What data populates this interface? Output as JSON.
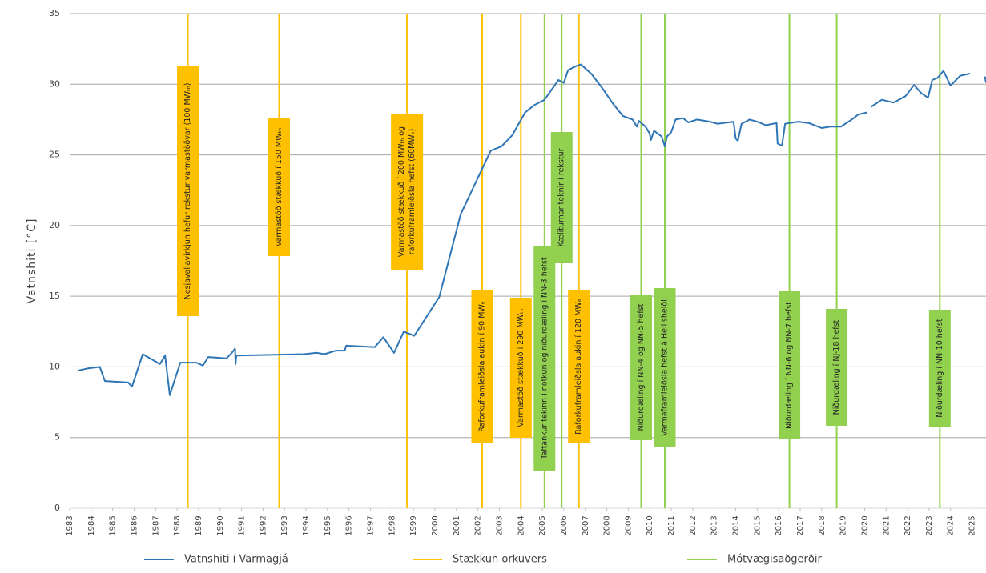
{
  "chart_data": {
    "type": "line",
    "ylabel": "Vatnshiti [°C]",
    "xlim": [
      1983,
      2025.65
    ],
    "xticks": [
      1983,
      1984,
      1985,
      1986,
      1987,
      1988,
      1989,
      1990,
      1991,
      1992,
      1993,
      1994,
      1995,
      1996,
      1997,
      1998,
      1999,
      2000,
      2001,
      2002,
      2003,
      2004,
      2005,
      2006,
      2007,
      2008,
      2009,
      2010,
      2011,
      2012,
      2013,
      2014,
      2015,
      2016,
      2017,
      2018,
      2019,
      2020,
      2021,
      2022,
      2023,
      2024,
      2025
    ],
    "ylim": [
      0,
      35
    ],
    "yticks": [
      0,
      5,
      10,
      15,
      20,
      25,
      30,
      35
    ],
    "grid": true,
    "legend": "bottom",
    "series": [
      {
        "name": "Vatnshiti í Varmagjá",
        "color": "#2e75b6",
        "x": [
          1983.4,
          1983.86,
          1984.4,
          1984.64,
          1985.72,
          1985.9,
          1986.4,
          1987.2,
          1987.44,
          1987.66,
          1988.15,
          1988.9,
          1989.2,
          1989.45,
          1990.3,
          1990.55,
          1990.7,
          1990.72,
          1990.76,
          1993.9,
          1994.5,
          1994.85,
          1995.4,
          1995.8,
          1995.87,
          1997.2,
          1997.6,
          1998.1,
          1998.55,
          1999.04,
          2000.2,
          2001.2,
          2002.07,
          2002.6,
          2003.1,
          2003.6,
          2004.2,
          2004.6,
          2005.1,
          2005.75,
          2006.0,
          2006.2,
          2006.6,
          2006.8,
          2007.3,
          2007.8,
          2008.3,
          2008.75,
          2009.2,
          2009.4,
          2009.5,
          2009.8,
          2010.0,
          2010.05,
          2010.2,
          2010.55,
          2010.7,
          2010.8,
          2011.0,
          2011.2,
          2011.55,
          2011.8,
          2012.2,
          2012.8,
          2013.15,
          2013.9,
          2014.0,
          2014.1,
          2014.27,
          2014.65,
          2015.0,
          2015.4,
          2015.9,
          2015.95,
          2016.15,
          2016.3,
          2016.9,
          2017.4,
          2018.0,
          2018.4,
          2018.9,
          2019.4,
          2019.7,
          2020.1,
          2020.2,
          2020.3,
          2020.8,
          2021.35,
          2021.9,
          2022.3,
          2022.65,
          2022.95,
          2023.15,
          2023.4,
          2023.67,
          2024.0,
          2024.45,
          2024.9,
          2025.2,
          2025.6,
          2025.65
        ],
        "values": [
          9.74,
          9.9,
          10.0,
          9.0,
          8.9,
          8.6,
          10.9,
          10.2,
          10.8,
          8.0,
          10.3,
          10.3,
          10.1,
          10.7,
          10.6,
          11.0,
          11.3,
          10.2,
          10.8,
          10.9,
          11.0,
          10.9,
          11.15,
          11.15,
          11.5,
          11.4,
          12.1,
          11.0,
          12.5,
          12.2,
          14.95,
          20.8,
          23.6,
          25.3,
          25.6,
          26.4,
          28.0,
          28.5,
          28.9,
          30.3,
          30.1,
          31.0,
          31.3,
          31.4,
          30.7,
          29.7,
          28.6,
          27.75,
          27.5,
          27.0,
          27.4,
          27.0,
          26.5,
          26.05,
          26.7,
          26.3,
          25.6,
          26.3,
          26.6,
          27.5,
          27.6,
          27.3,
          27.5,
          27.35,
          27.2,
          27.35,
          26.15,
          26.0,
          27.2,
          27.5,
          27.35,
          27.1,
          27.25,
          25.8,
          25.65,
          27.2,
          27.35,
          27.25,
          26.9,
          27.0,
          27.0,
          27.5,
          27.85,
          28.0,
          null,
          28.4,
          28.9,
          28.7,
          29.15,
          29.95,
          29.35,
          29.05,
          30.3,
          30.45,
          30.95,
          29.9,
          30.6,
          30.75,
          null,
          30.55,
          30.1
        ]
      }
    ],
    "event_groups": [
      {
        "name": "Stækkun orkuvers",
        "color": "#ffc000",
        "events": [
          {
            "x": 1988.5,
            "label": [
              "Nesjavallavirkjun hefur rekstur varmastöðvar (100 MWₜₕ)"
            ]
          },
          {
            "x": 1992.75,
            "label": [
              "Varmastöð stækkuð í 150 MWₜₕ"
            ]
          },
          {
            "x": 1998.7,
            "label": [
              "Varmastöð stækkuð í 200 MWₜₕ og",
              "raforkuframleiðsla hefst (60MWₑ)"
            ]
          },
          {
            "x": 2002.2,
            "label": [
              "Raforkuframleiðsla aukin í 90 MWₑ"
            ]
          },
          {
            "x": 2004.0,
            "label": [
              "Varmastöð stækkuð í 290 MWₜₕ"
            ]
          },
          {
            "x": 2006.7,
            "label": [
              "Raforkuframleiðsla aukin í 120 MWₑ"
            ]
          }
        ]
      },
      {
        "name": "Mótvægisaðgerðir",
        "color": "#92d050",
        "events": [
          {
            "x": 2005.1,
            "label": [
              "Taftankur tekinn í notkun og niðurdæling í NN-3 hefst"
            ]
          },
          {
            "x": 2005.9,
            "label": [
              "Kæliturnar teknir í rekstur"
            ]
          },
          {
            "x": 2009.6,
            "label": [
              "Niðurdæling í NN-4 og NN-5 hefst"
            ]
          },
          {
            "x": 2010.7,
            "label": [
              "Varmaframleiðsla hefst á Hellisheiði"
            ]
          },
          {
            "x": 2016.5,
            "label": [
              "Niðurdæling í NN-6 og NN-7 hefst"
            ]
          },
          {
            "x": 2018.7,
            "label": [
              "Niðurdæling í NJ-18 hefst"
            ]
          },
          {
            "x": 2023.5,
            "label": [
              "Niðurdæling í NN-10 hefst"
            ]
          }
        ]
      }
    ]
  }
}
